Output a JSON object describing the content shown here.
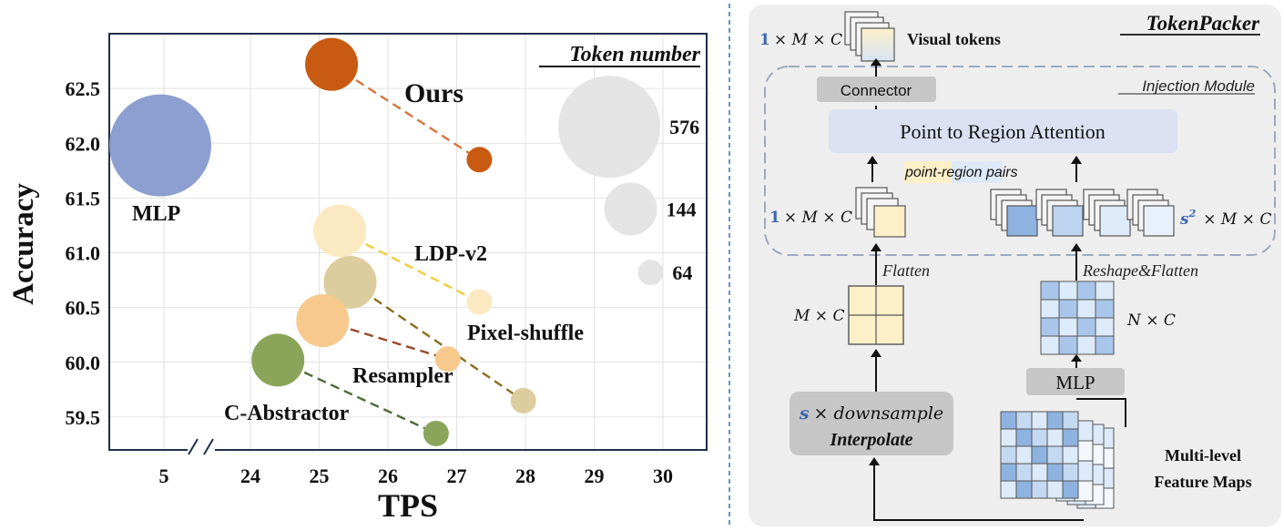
{
  "chart_data": {
    "type": "scatter",
    "title": "",
    "xlabel": "TPS",
    "ylabel": "Accuracy",
    "x_ticks": [
      "5",
      "24",
      "25",
      "26",
      "27",
      "28",
      "29",
      "30"
    ],
    "y_ticks": [
      "59.5",
      "60.0",
      "60.5",
      "61.0",
      "61.5",
      "62.0",
      "62.5"
    ],
    "ylim": [
      59.2,
      63.0
    ],
    "x_axis_break": "between 5 and 24",
    "grid": true,
    "legend_title": "Token number",
    "legend_position": "top-right",
    "size_legend": [
      {
        "label": "576",
        "tokens": 576
      },
      {
        "label": "144",
        "tokens": 144
      },
      {
        "label": "64",
        "tokens": 64
      }
    ],
    "points": [
      {
        "method": "MLP",
        "x": 4.9,
        "y": 61.98,
        "tokens": 576,
        "color": "#8c9fd0"
      },
      {
        "method": "Ours",
        "x": 25.18,
        "y": 62.72,
        "tokens": 144,
        "color": "#c85a12"
      },
      {
        "method": "Ours",
        "x": 27.33,
        "y": 61.85,
        "tokens": 64,
        "color": "#c85a12"
      },
      {
        "method": "LDP-v2",
        "x": 25.3,
        "y": 61.2,
        "tokens": 144,
        "color": "#fbe9c2"
      },
      {
        "method": "LDP-v2",
        "x": 27.33,
        "y": 60.55,
        "tokens": 64,
        "color": "#fbe9c2"
      },
      {
        "method": "Pixel-shuffle",
        "x": 25.45,
        "y": 60.73,
        "tokens": 144,
        "color": "#dccd9e"
      },
      {
        "method": "Pixel-shuffle",
        "x": 27.97,
        "y": 59.65,
        "tokens": 64,
        "color": "#dccd9e"
      },
      {
        "method": "Resampler",
        "x": 25.05,
        "y": 60.38,
        "tokens": 144,
        "color": "#f7c98d"
      },
      {
        "method": "Resampler",
        "x": 26.87,
        "y": 60.03,
        "tokens": 64,
        "color": "#f7c98d"
      },
      {
        "method": "C-Abstractor",
        "x": 24.4,
        "y": 60.02,
        "tokens": 144,
        "color": "#8aa55a"
      },
      {
        "method": "C-Abstractor",
        "x": 26.7,
        "y": 59.35,
        "tokens": 64,
        "color": "#8aa55a"
      }
    ],
    "connections": [
      {
        "method": "Ours",
        "color": "#d3773e"
      },
      {
        "method": "LDP-v2",
        "color": "#f1cd3a"
      },
      {
        "method": "Pixel-shuffle",
        "color": "#8a6e22"
      },
      {
        "method": "Resampler",
        "color": "#964a2a"
      },
      {
        "method": "C-Abstractor",
        "color": "#4d6a37"
      }
    ],
    "method_labels": [
      "Ours",
      "MLP",
      "LDP-v2",
      "Pixel-shuffle",
      "Resampler",
      "C-Abstractor"
    ]
  },
  "diagram": {
    "title": "TokenPacker",
    "injection_module": "Injection Module",
    "visual_tokens": "Visual tokens",
    "connector": "Connector",
    "attention": "Point to Region Attention",
    "pairs_point": "point-",
    "pairs_region": "region pairs",
    "flatten": "Flatten",
    "reshape_flatten": "Reshape&Flatten",
    "mlp": "MLP",
    "downsample_s": "s",
    "downsample_rest": "× downsample",
    "interpolate": "Interpolate",
    "feature_maps_line1": "Multi-level",
    "feature_maps_line2": "Feature Maps",
    "dim_top_one": "1",
    "dim_top_rest": "× M × C",
    "dim_left_one": "1",
    "dim_left_rest": "× M × C",
    "dim_right_s2": "s",
    "dim_right_sup": "2",
    "dim_right_rest": "× M × C",
    "dim_mc": "M × C",
    "dim_nc": "N × C",
    "colors": {
      "panel": "#eeeeee",
      "attention": "#dbe1f3",
      "accent_blue": "#3c66b0",
      "query": "#fdf0c9",
      "key_dark": "#8fb3e0",
      "key_light": "#dceaf9"
    }
  }
}
